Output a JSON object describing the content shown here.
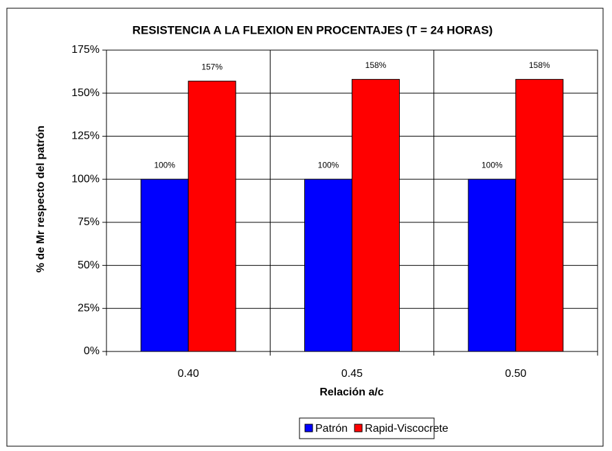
{
  "chart_data": {
    "type": "bar",
    "title": "RESISTENCIA A  LA FLEXION EN PROCENTAJES (T = 24 HORAS)",
    "x_label": "Relación a/c",
    "y_label": "% de Mr respecto del patrón",
    "categories": [
      "0.40",
      "0.45",
      "0.50"
    ],
    "series": [
      {
        "name": "Patrón",
        "color": "#0000ff",
        "values": [
          100,
          100,
          100
        ],
        "value_labels": [
          "100%",
          "100%",
          "100%"
        ]
      },
      {
        "name": "Rapid-Viscocrete",
        "color": "#ff0000",
        "values": [
          157,
          158,
          158
        ],
        "value_labels": [
          "157%",
          "158%",
          "158%"
        ]
      }
    ],
    "ylim": [
      0,
      175
    ],
    "yticks": [
      {
        "value": 0,
        "label": "0%"
      },
      {
        "value": 25,
        "label": "25%"
      },
      {
        "value": 50,
        "label": "50%"
      },
      {
        "value": 75,
        "label": "75%"
      },
      {
        "value": 100,
        "label": "100%"
      },
      {
        "value": 125,
        "label": "125%"
      },
      {
        "value": 150,
        "label": "150%"
      },
      {
        "value": 175,
        "label": "175%"
      }
    ],
    "grid": true,
    "legend": "bottom"
  }
}
